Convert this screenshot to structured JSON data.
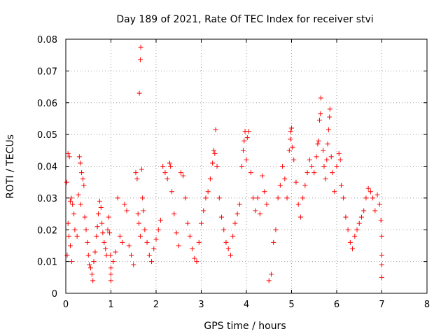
{
  "chart_data": {
    "type": "scatter",
    "title": "Day 189 of 2021, Rate Of TEC Index for receiver stvi",
    "xlabel": "GPS time / hours",
    "ylabel": "ROTI / TECUs",
    "xlim": [
      0,
      8
    ],
    "ylim": [
      0,
      0.08
    ],
    "xticks": [
      0,
      1,
      2,
      3,
      4,
      5,
      6,
      7,
      8
    ],
    "xtick_labels": [
      "0",
      "1",
      "2",
      "3",
      "4",
      "5",
      "6",
      "7",
      "8"
    ],
    "yticks": [
      0,
      0.01,
      0.02,
      0.03,
      0.04,
      0.05,
      0.06,
      0.07,
      0.08
    ],
    "ytick_labels": [
      "0",
      "0.01",
      "0.02",
      "0.03",
      "0.04",
      "0.05",
      "0.06",
      "0.07",
      "0.08"
    ],
    "grid": true,
    "marker": "+",
    "color": "#ff0000",
    "series": [
      {
        "name": "ROTI",
        "points": [
          [
            0.02,
            0.035
          ],
          [
            0.05,
            0.044
          ],
          [
            0.08,
            0.043
          ],
          [
            0.1,
            0.029
          ],
          [
            0.12,
            0.03
          ],
          [
            0.15,
            0.028
          ],
          [
            0.18,
            0.025
          ],
          [
            0.05,
            0.022
          ],
          [
            0.07,
            0.018
          ],
          [
            0.1,
            0.015
          ],
          [
            0.03,
            0.012
          ],
          [
            0.13,
            0.01
          ],
          [
            0.2,
            0.02
          ],
          [
            0.25,
            0.018
          ],
          [
            0.28,
            0.031
          ],
          [
            0.3,
            0.043
          ],
          [
            0.32,
            0.041
          ],
          [
            0.35,
            0.038
          ],
          [
            0.38,
            0.036
          ],
          [
            0.4,
            0.034
          ],
          [
            0.33,
            0.028
          ],
          [
            0.42,
            0.024
          ],
          [
            0.45,
            0.02
          ],
          [
            0.48,
            0.016
          ],
          [
            0.5,
            0.012
          ],
          [
            0.52,
            0.009
          ],
          [
            0.55,
            0.008
          ],
          [
            0.58,
            0.006
          ],
          [
            0.6,
            0.004
          ],
          [
            0.62,
            0.01
          ],
          [
            0.65,
            0.013
          ],
          [
            0.68,
            0.018
          ],
          [
            0.7,
            0.021
          ],
          [
            0.72,
            0.025
          ],
          [
            0.75,
            0.029
          ],
          [
            0.78,
            0.027
          ],
          [
            0.8,
            0.022
          ],
          [
            0.82,
            0.019
          ],
          [
            0.85,
            0.016
          ],
          [
            0.88,
            0.014
          ],
          [
            0.9,
            0.012
          ],
          [
            0.93,
            0.02
          ],
          [
            0.95,
            0.024
          ],
          [
            0.97,
            0.019
          ],
          [
            0.99,
            0.012
          ],
          [
            1.0,
            0.008
          ],
          [
            1.0,
            0.006
          ],
          [
            1.0,
            0.004
          ],
          [
            1.05,
            0.01
          ],
          [
            1.1,
            0.013
          ],
          [
            1.15,
            0.03
          ],
          [
            1.2,
            0.018
          ],
          [
            1.25,
            0.016
          ],
          [
            1.3,
            0.028
          ],
          [
            1.35,
            0.026
          ],
          [
            1.4,
            0.015
          ],
          [
            1.45,
            0.012
          ],
          [
            1.5,
            0.009
          ],
          [
            1.55,
            0.038
          ],
          [
            1.58,
            0.036
          ],
          [
            1.6,
            0.025
          ],
          [
            1.62,
            0.022
          ],
          [
            1.65,
            0.018
          ],
          [
            1.63,
            0.063
          ],
          [
            1.65,
            0.0735
          ],
          [
            1.66,
            0.0775
          ],
          [
            1.68,
            0.039
          ],
          [
            1.7,
            0.03
          ],
          [
            1.72,
            0.026
          ],
          [
            1.75,
            0.02
          ],
          [
            1.8,
            0.016
          ],
          [
            1.85,
            0.012
          ],
          [
            1.9,
            0.01
          ],
          [
            1.95,
            0.014
          ],
          [
            2.0,
            0.017
          ],
          [
            2.05,
            0.02
          ],
          [
            2.1,
            0.023
          ],
          [
            2.15,
            0.04
          ],
          [
            2.2,
            0.038
          ],
          [
            2.25,
            0.036
          ],
          [
            2.3,
            0.041
          ],
          [
            2.32,
            0.04
          ],
          [
            2.35,
            0.032
          ],
          [
            2.4,
            0.025
          ],
          [
            2.45,
            0.019
          ],
          [
            2.5,
            0.015
          ],
          [
            2.55,
            0.038
          ],
          [
            2.6,
            0.037
          ],
          [
            2.65,
            0.03
          ],
          [
            2.7,
            0.022
          ],
          [
            2.75,
            0.018
          ],
          [
            2.8,
            0.014
          ],
          [
            2.85,
            0.011
          ],
          [
            2.9,
            0.01
          ],
          [
            2.95,
            0.016
          ],
          [
            3.0,
            0.022
          ],
          [
            3.05,
            0.026
          ],
          [
            3.1,
            0.03
          ],
          [
            3.15,
            0.032
          ],
          [
            3.2,
            0.036
          ],
          [
            3.25,
            0.041
          ],
          [
            3.28,
            0.045
          ],
          [
            3.3,
            0.044
          ],
          [
            3.32,
            0.0515
          ],
          [
            3.35,
            0.04
          ],
          [
            3.4,
            0.03
          ],
          [
            3.45,
            0.024
          ],
          [
            3.5,
            0.02
          ],
          [
            3.55,
            0.016
          ],
          [
            3.6,
            0.014
          ],
          [
            3.65,
            0.012
          ],
          [
            3.7,
            0.018
          ],
          [
            3.75,
            0.022
          ],
          [
            3.8,
            0.025
          ],
          [
            3.85,
            0.028
          ],
          [
            3.9,
            0.04
          ],
          [
            3.93,
            0.045
          ],
          [
            3.95,
            0.048
          ],
          [
            3.97,
            0.051
          ],
          [
            4.0,
            0.042
          ],
          [
            4.02,
            0.049
          ],
          [
            4.05,
            0.051
          ],
          [
            4.1,
            0.038
          ],
          [
            4.15,
            0.03
          ],
          [
            4.2,
            0.026
          ],
          [
            4.25,
            0.03
          ],
          [
            4.3,
            0.025
          ],
          [
            4.35,
            0.037
          ],
          [
            4.4,
            0.032
          ],
          [
            4.45,
            0.028
          ],
          [
            4.5,
            0.004
          ],
          [
            4.55,
            0.006
          ],
          [
            4.6,
            0.016
          ],
          [
            4.65,
            0.02
          ],
          [
            4.7,
            0.03
          ],
          [
            4.75,
            0.034
          ],
          [
            4.8,
            0.04
          ],
          [
            4.85,
            0.036
          ],
          [
            4.9,
            0.03
          ],
          [
            4.95,
            0.045
          ],
          [
            4.97,
            0.0485
          ],
          [
            4.98,
            0.051
          ],
          [
            5.0,
            0.052
          ],
          [
            5.02,
            0.046
          ],
          [
            5.05,
            0.042
          ],
          [
            5.1,
            0.035
          ],
          [
            5.15,
            0.028
          ],
          [
            5.2,
            0.024
          ],
          [
            5.25,
            0.03
          ],
          [
            5.3,
            0.034
          ],
          [
            5.35,
            0.038
          ],
          [
            5.4,
            0.042
          ],
          [
            5.45,
            0.04
          ],
          [
            5.5,
            0.038
          ],
          [
            5.55,
            0.043
          ],
          [
            5.58,
            0.047
          ],
          [
            5.6,
            0.048
          ],
          [
            5.62,
            0.0545
          ],
          [
            5.64,
            0.0565
          ],
          [
            5.65,
            0.0615
          ],
          [
            5.7,
            0.045
          ],
          [
            5.72,
            0.04
          ],
          [
            5.75,
            0.036
          ],
          [
            5.78,
            0.042
          ],
          [
            5.8,
            0.047
          ],
          [
            5.82,
            0.0515
          ],
          [
            5.84,
            0.0555
          ],
          [
            5.85,
            0.058
          ],
          [
            5.88,
            0.043
          ],
          [
            5.9,
            0.038
          ],
          [
            5.95,
            0.032
          ],
          [
            6.0,
            0.04
          ],
          [
            6.05,
            0.044
          ],
          [
            6.08,
            0.042
          ],
          [
            6.1,
            0.034
          ],
          [
            6.15,
            0.03
          ],
          [
            6.2,
            0.024
          ],
          [
            6.25,
            0.02
          ],
          [
            6.3,
            0.016
          ],
          [
            6.35,
            0.014
          ],
          [
            6.4,
            0.018
          ],
          [
            6.45,
            0.02
          ],
          [
            6.5,
            0.022
          ],
          [
            6.55,
            0.024
          ],
          [
            6.6,
            0.026
          ],
          [
            6.65,
            0.03
          ],
          [
            6.7,
            0.033
          ],
          [
            6.75,
            0.032
          ],
          [
            6.8,
            0.03
          ],
          [
            6.85,
            0.026
          ],
          [
            6.9,
            0.031
          ],
          [
            6.95,
            0.028
          ],
          [
            6.98,
            0.023
          ],
          [
            7.0,
            0.018
          ],
          [
            7.0,
            0.012
          ],
          [
            7.0,
            0.009
          ],
          [
            7.0,
            0.005
          ]
        ]
      }
    ]
  }
}
